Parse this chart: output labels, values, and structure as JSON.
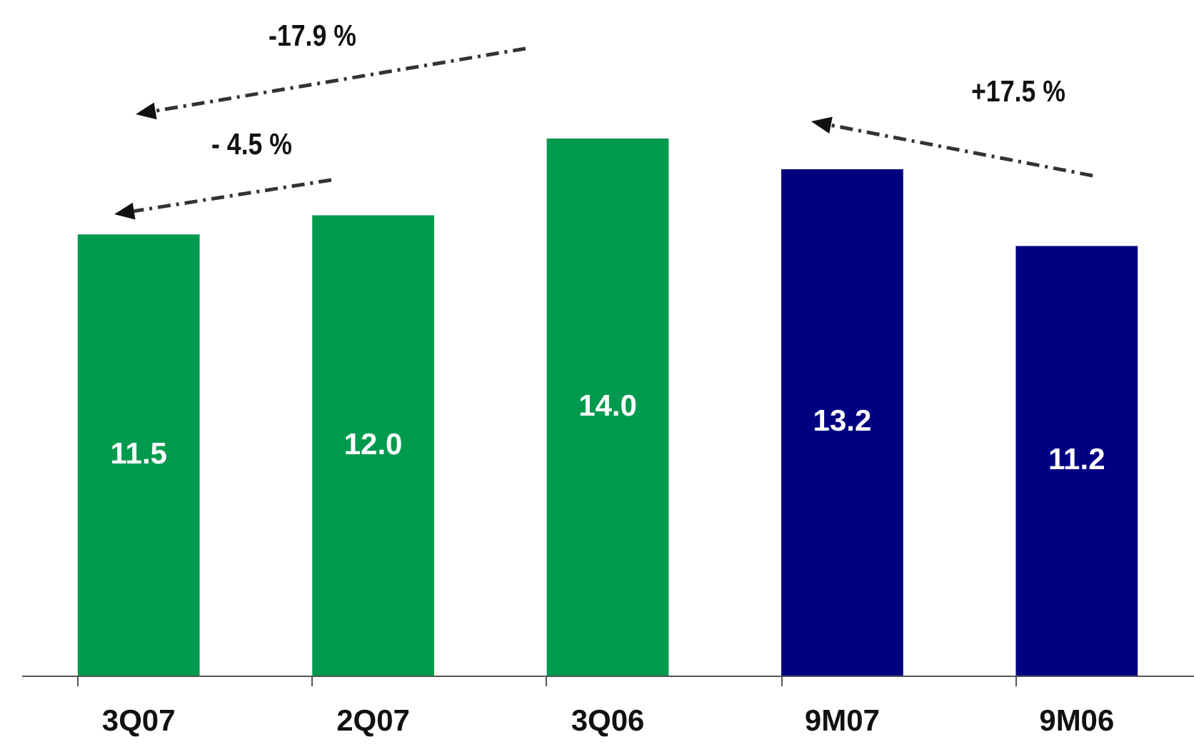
{
  "chart_data": {
    "type": "bar",
    "categories": [
      "3Q07",
      "2Q07",
      "3Q06",
      "9M07",
      "9M06"
    ],
    "values": [
      11.5,
      12.0,
      14.0,
      13.2,
      11.2
    ],
    "colors": [
      "#009a4e",
      "#009a4e",
      "#009a4e",
      "#000080",
      "#000080"
    ],
    "value_labels": [
      "11.5",
      "12.0",
      "14.0",
      "13.2",
      "11.2"
    ],
    "annotations": [
      "-17.9 %",
      "- 4.5 %",
      "+17.5 %"
    ]
  }
}
